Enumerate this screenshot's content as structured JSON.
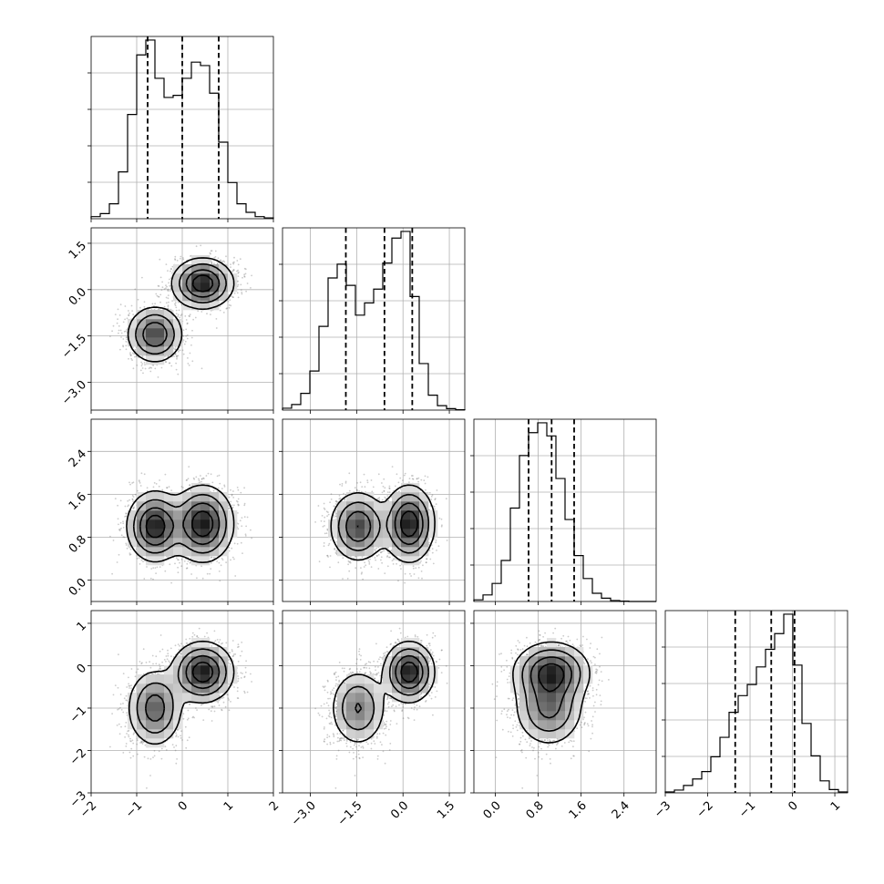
{
  "chart_data": {
    "type": "corner",
    "grid": true,
    "n_params": 4,
    "parameters": [
      {
        "range": [
          -2,
          2
        ],
        "ticks": [
          -2,
          -1,
          0,
          1,
          2
        ],
        "tick_labels": [
          "−2",
          "−1",
          "0",
          "1",
          "2"
        ],
        "quantiles": [
          -0.76,
          0.0,
          0.8
        ],
        "hist": {
          "edges": [
            -2.0,
            -1.8,
            -1.6,
            -1.4,
            -1.2,
            -1.0,
            -0.8,
            -0.6,
            -0.4,
            -0.2,
            0.0,
            0.2,
            0.4,
            0.6,
            0.8,
            1.0,
            1.2,
            1.4,
            1.6,
            1.8,
            2.0
          ],
          "counts": [
            5,
            12,
            35,
            110,
            245,
            385,
            420,
            330,
            285,
            290,
            330,
            368,
            360,
            295,
            180,
            85,
            35,
            15,
            5,
            2
          ]
        }
      },
      {
        "range": [
          -3.9,
          2.0
        ],
        "ticks": [
          -3.0,
          -1.5,
          0.0,
          1.5
        ],
        "tick_labels": [
          "−3.0",
          "−1.5",
          "0.0",
          "1.5"
        ],
        "quantiles": [
          -1.85,
          -0.6,
          0.3
        ],
        "hist": {
          "edges": [
            -3.9,
            -3.605,
            -3.31,
            -3.015,
            -2.72,
            -2.425,
            -2.13,
            -1.835,
            -1.54,
            -1.245,
            -0.95,
            -0.655,
            -0.36,
            -0.065,
            0.23,
            0.525,
            0.82,
            1.115,
            1.41,
            1.705,
            2.0
          ],
          "counts": [
            5,
            15,
            45,
            105,
            225,
            355,
            392,
            335,
            255,
            288,
            325,
            395,
            462,
            480,
            305,
            125,
            40,
            12,
            4,
            1
          ]
        }
      },
      {
        "range": [
          -0.4,
          3.0
        ],
        "ticks": [
          0.0,
          0.8,
          1.6,
          2.4
        ],
        "tick_labels": [
          "0.0",
          "0.8",
          "1.6",
          "2.4"
        ],
        "quantiles": [
          0.62,
          1.05,
          1.47
        ],
        "hist": {
          "edges": [
            -0.4,
            -0.23,
            -0.06,
            0.11,
            0.28,
            0.45,
            0.62,
            0.79,
            0.96,
            1.13,
            1.3,
            1.47,
            1.64,
            1.81,
            1.98,
            2.15,
            2.32,
            2.49,
            2.66,
            2.83,
            3.0
          ],
          "counts": [
            5,
            20,
            55,
            125,
            285,
            445,
            515,
            545,
            505,
            375,
            250,
            140,
            70,
            25,
            10,
            3,
            1,
            0,
            0,
            0
          ]
        }
      },
      {
        "range": [
          -3.0,
          1.3
        ],
        "ticks": [
          -3,
          -2,
          -1,
          0,
          1
        ],
        "tick_labels": [
          "−3",
          "−2",
          "−1",
          "0",
          "1"
        ],
        "quantiles": [
          -1.35,
          -0.5,
          0.05
        ],
        "hist": {
          "edges": [
            -3.0,
            -2.785,
            -2.57,
            -2.355,
            -2.14,
            -1.925,
            -1.71,
            -1.495,
            -1.28,
            -1.065,
            -0.85,
            -0.635,
            -0.42,
            -0.205,
            0.01,
            0.225,
            0.44,
            0.655,
            0.87,
            1.085,
            1.3
          ],
          "counts": [
            5,
            15,
            40,
            75,
            115,
            195,
            300,
            435,
            525,
            585,
            680,
            775,
            860,
            965,
            690,
            375,
            200,
            65,
            18,
            5
          ]
        }
      }
    ],
    "modes": [
      {
        "weight": 0.45,
        "mean": [
          -0.6,
          -1.45,
          1.0,
          -1.0
        ],
        "sd": [
          0.3,
          0.45,
          0.32,
          0.45
        ]
      },
      {
        "weight": 0.55,
        "mean": [
          0.45,
          0.2,
          1.05,
          -0.15
        ],
        "sd": [
          0.33,
          0.4,
          0.35,
          0.35
        ]
      }
    ]
  }
}
